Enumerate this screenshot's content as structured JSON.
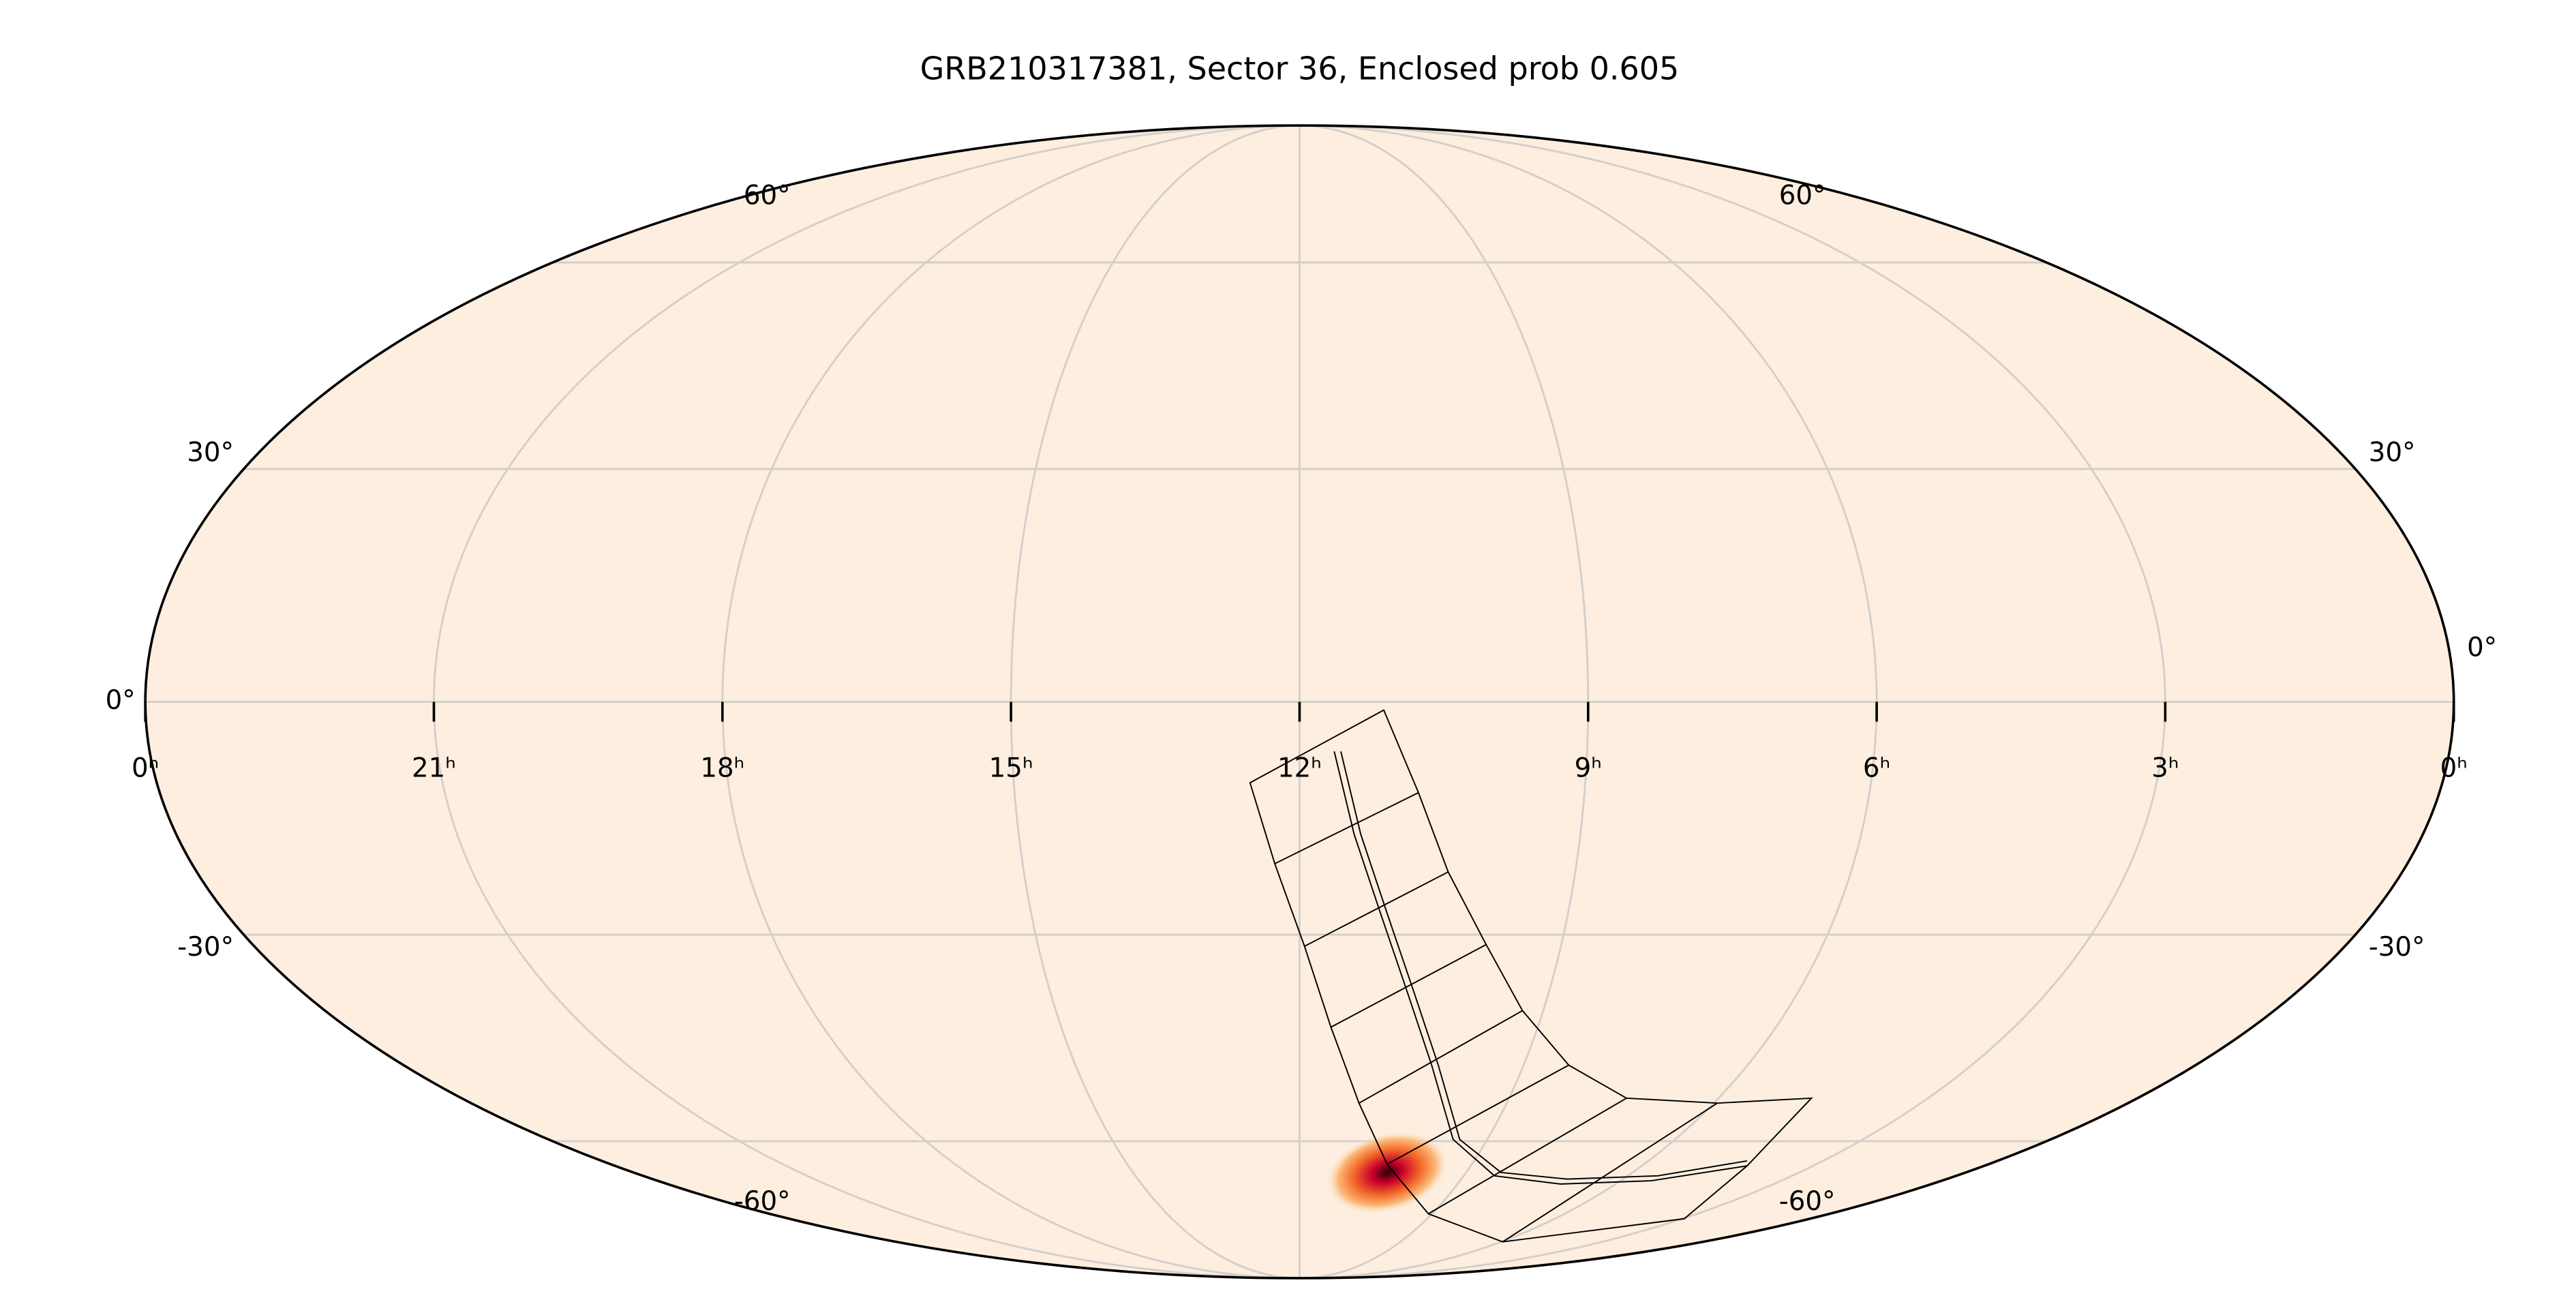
{
  "chart_data": {
    "type": "mollweide",
    "title": "GRB210317381, Sector 36, Enclosed prob 0.605",
    "xlim": [
      24,
      0
    ],
    "xticks": [
      {
        "value": 24,
        "label": "0ʰ"
      },
      {
        "value": 21,
        "label": "21ʰ"
      },
      {
        "value": 18,
        "label": "18ʰ"
      },
      {
        "value": 15,
        "label": "15ʰ"
      },
      {
        "value": 12,
        "label": "12ʰ"
      },
      {
        "value": 9,
        "label": "9ʰ"
      },
      {
        "value": 6,
        "label": "6ʰ"
      },
      {
        "value": 3,
        "label": "3ʰ"
      },
      {
        "value": 0,
        "label": "0ʰ"
      }
    ],
    "ylim": [
      -90,
      90
    ],
    "yticks": [
      {
        "value": -60,
        "label": "-60°"
      },
      {
        "value": -30,
        "label": "-30°"
      },
      {
        "value": 0,
        "label": "0°"
      },
      {
        "value": 30,
        "label": "30°"
      },
      {
        "value": 60,
        "label": "60°"
      }
    ],
    "grid": true
  }
}
